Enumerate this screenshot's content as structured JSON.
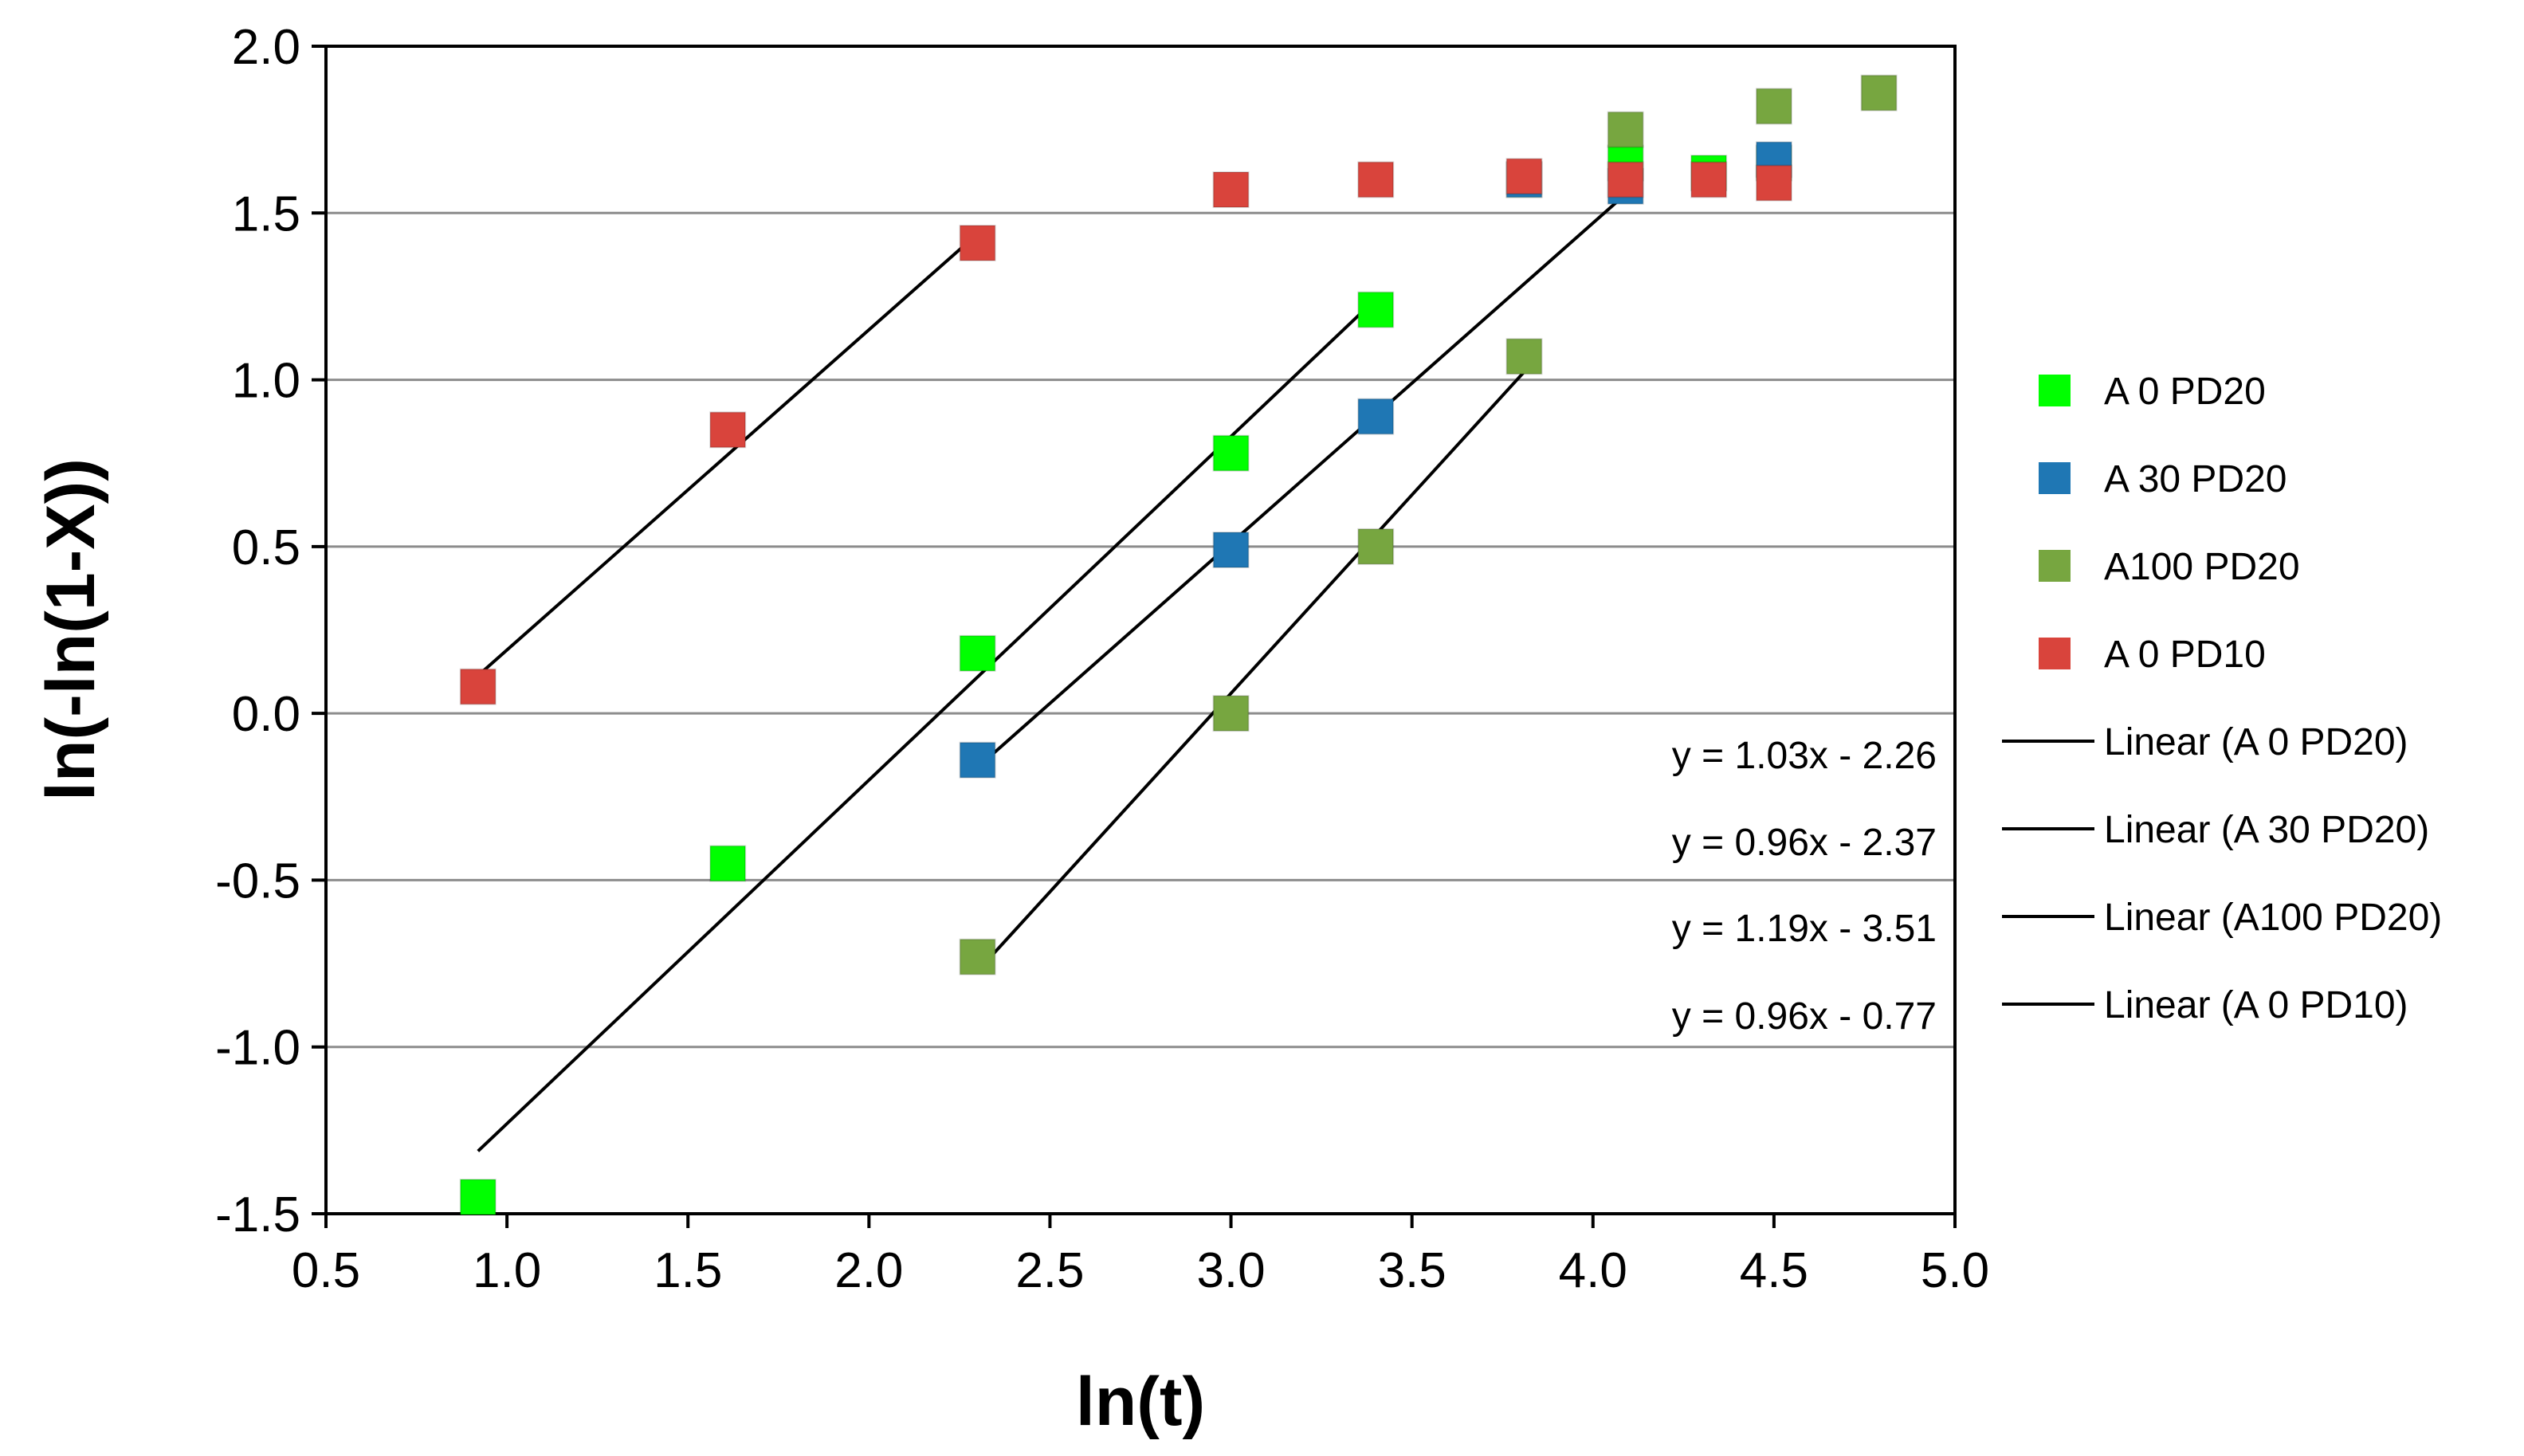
{
  "chart_data": {
    "type": "scatter",
    "title": "",
    "xlabel": "ln(t)",
    "ylabel": "ln(-ln(1-X))",
    "xlim": [
      0.5,
      5.0
    ],
    "ylim": [
      -1.5,
      2.0
    ],
    "x_ticks": [
      "0.5",
      "1.0",
      "1.5",
      "2.0",
      "2.5",
      "3.0",
      "3.5",
      "4.0",
      "4.5",
      "5.0"
    ],
    "y_ticks": [
      "2.0",
      "1.5",
      "1.0",
      "0.5",
      "0.0",
      "-0.5",
      "-1.0",
      "-1.5"
    ],
    "grid": "horizontal",
    "legend_position": "right",
    "series": [
      {
        "name": "A 0    PD20",
        "color": "#00ff00",
        "x": [
          0.92,
          1.61,
          2.3,
          3.0,
          3.4,
          3.81,
          4.09,
          4.32,
          4.5
        ],
        "y": [
          -1.45,
          -0.45,
          0.18,
          0.78,
          1.21,
          1.6,
          1.65,
          1.62,
          1.65
        ]
      },
      {
        "name": "A 30  PD20",
        "color": "#1f77b4",
        "x": [
          2.3,
          3.0,
          3.4,
          3.81,
          4.09,
          4.5
        ],
        "y": [
          -0.14,
          0.49,
          0.89,
          1.6,
          1.58,
          1.66
        ]
      },
      {
        "name": "A100 PD20",
        "color": "#77a640",
        "x": [
          2.3,
          3.0,
          3.4,
          3.81,
          4.09,
          4.5,
          4.79
        ],
        "y": [
          -0.73,
          0.0,
          0.5,
          1.07,
          1.75,
          1.82,
          1.86
        ]
      },
      {
        "name": "A 0    PD10",
        "color": "#d9443c",
        "x": [
          0.92,
          1.61,
          2.3,
          3.0,
          3.4,
          3.81,
          4.09,
          4.32,
          4.5
        ],
        "y": [
          0.08,
          0.85,
          1.41,
          1.57,
          1.6,
          1.61,
          1.6,
          1.6,
          1.59
        ]
      }
    ],
    "trendlines": [
      {
        "name": "Linear (A 0    PD20)",
        "x_range": [
          0.92,
          3.4
        ],
        "slope": 1.03,
        "intercept": -2.26,
        "equation": "y = 1.03x - 2.26"
      },
      {
        "name": "Linear (A 30  PD20)",
        "x_range": [
          2.3,
          4.09
        ],
        "slope": 0.96,
        "intercept": -2.37,
        "equation": "y = 0.96x - 2.37"
      },
      {
        "name": "Linear (A100 PD20)",
        "x_range": [
          2.3,
          3.81
        ],
        "slope": 1.19,
        "intercept": -3.51,
        "equation": "y = 1.19x - 3.51"
      },
      {
        "name": "Linear (A 0    PD10)",
        "x_range": [
          0.92,
          2.3
        ],
        "slope": 0.96,
        "intercept": -0.77,
        "equation": "y = 0.96x - 0.77"
      }
    ]
  }
}
